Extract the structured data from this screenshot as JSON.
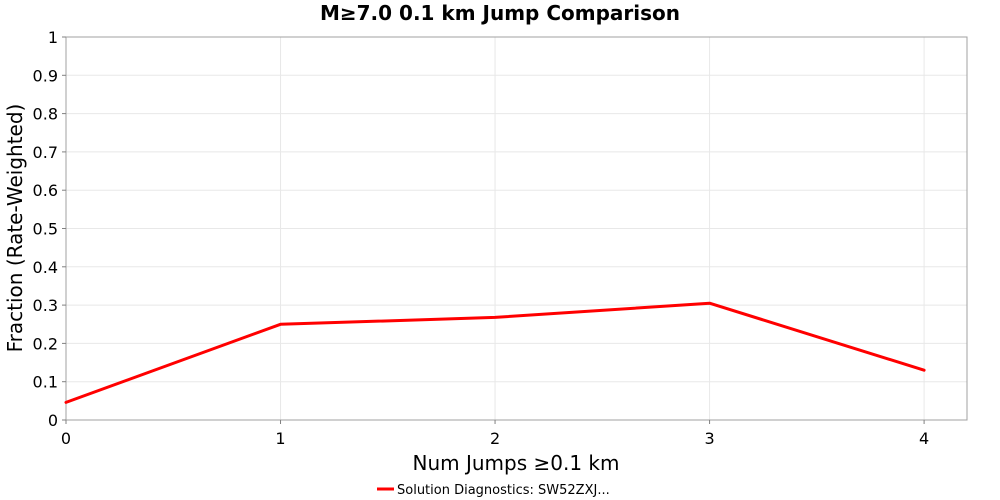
{
  "chart_data": {
    "type": "line",
    "title": "M≥7.0 0.1 km Jump Comparison",
    "xlabel": "Num Jumps ≥0.1 km",
    "ylabel": "Fraction (Rate-Weighted)",
    "x": [
      0,
      1,
      2,
      3,
      4
    ],
    "xlim": [
      0,
      4.2
    ],
    "ylim": [
      0,
      1
    ],
    "x_ticks": [
      "0",
      "1",
      "2",
      "3",
      "4"
    ],
    "y_ticks": [
      "0",
      "0.1",
      "0.2",
      "0.3",
      "0.4",
      "0.5",
      "0.6",
      "0.7",
      "0.8",
      "0.9",
      "1"
    ],
    "grid": true,
    "legend_position": "bottom",
    "series": [
      {
        "name": "Solution Diagnostics: SW52ZXJ...",
        "color": "#ff0000",
        "values": [
          0.046,
          0.25,
          0.268,
          0.305,
          0.13
        ]
      }
    ]
  }
}
